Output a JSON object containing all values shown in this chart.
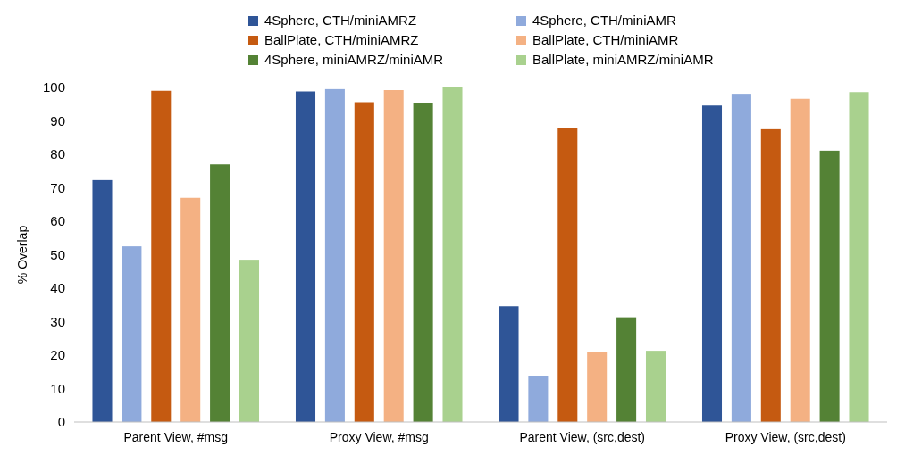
{
  "chart_data": {
    "type": "bar",
    "ylabel": "% Overlap",
    "categories": [
      "Parent View, #msg",
      "Proxy View, #msg",
      "Parent View, (src,dest)",
      "Proxy View, (src,dest)"
    ],
    "series": [
      {
        "name": "4Sphere, CTH/miniAMRZ",
        "color": "#2f5597",
        "values": [
          72.3,
          98.8,
          34.6,
          94.6
        ]
      },
      {
        "name": "4Sphere, CTH/miniAMR",
        "color": "#8faadc",
        "values": [
          52.5,
          99.5,
          13.8,
          98.1
        ]
      },
      {
        "name": "BallPlate, CTH/miniAMRZ",
        "color": "#c55a11",
        "values": [
          99,
          95.6,
          87.9,
          87.5
        ]
      },
      {
        "name": "BallPlate, CTH/miniAMR",
        "color": "#f4b183",
        "values": [
          67,
          99.2,
          21,
          96.6
        ]
      },
      {
        "name": "4Sphere, miniAMRZ/miniAMR",
        "color": "#548235",
        "values": [
          77,
          95.4,
          31.3,
          81.1
        ]
      },
      {
        "name": "BallPlate, miniAMRZ/miniAMR",
        "color": "#a9d18e",
        "values": [
          48.5,
          100,
          21.3,
          98.6
        ]
      }
    ],
    "ylim": [
      0,
      100
    ],
    "yticks": [
      0,
      10,
      20,
      30,
      40,
      50,
      60,
      70,
      80,
      90,
      100
    ],
    "legend": "top",
    "grid": false
  }
}
